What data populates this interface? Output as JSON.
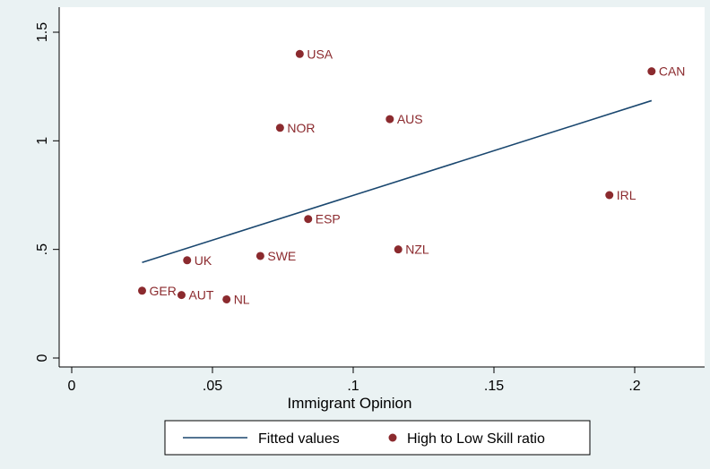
{
  "chart_data": {
    "type": "scatter",
    "title": "",
    "xlabel": "Immigrant Opinion",
    "ylabel": "",
    "xlim": [
      -0.005,
      0.225
    ],
    "ylim": [
      -0.03,
      1.55
    ],
    "xticks": [
      0,
      0.05,
      0.1,
      0.15,
      0.2
    ],
    "xtick_labels": [
      "0",
      ".05",
      ".1",
      ".15",
      ".2"
    ],
    "yticks": [
      0,
      0.5,
      1,
      1.5
    ],
    "ytick_labels": [
      "0",
      ".5",
      "1",
      "1.5"
    ],
    "grid": false,
    "legend_position": "bottom",
    "series": [
      {
        "name": "High to Low Skill ratio",
        "kind": "scatter",
        "color": "#8b2a2e",
        "points": [
          {
            "label": "USA",
            "x": 0.081,
            "y": 1.4
          },
          {
            "label": "CAN",
            "x": 0.206,
            "y": 1.32
          },
          {
            "label": "AUS",
            "x": 0.113,
            "y": 1.1
          },
          {
            "label": "NOR",
            "x": 0.074,
            "y": 1.06
          },
          {
            "label": "IRL",
            "x": 0.191,
            "y": 0.75
          },
          {
            "label": "ESP",
            "x": 0.084,
            "y": 0.64
          },
          {
            "label": "NZL",
            "x": 0.116,
            "y": 0.5
          },
          {
            "label": "SWE",
            "x": 0.067,
            "y": 0.47
          },
          {
            "label": "UK",
            "x": 0.041,
            "y": 0.45
          },
          {
            "label": "GER",
            "x": 0.025,
            "y": 0.31
          },
          {
            "label": "AUT",
            "x": 0.039,
            "y": 0.29
          },
          {
            "label": "NL",
            "x": 0.055,
            "y": 0.27
          }
        ]
      },
      {
        "name": "Fitted values",
        "kind": "line",
        "color": "#1a476f",
        "x": [
          0.025,
          0.206
        ],
        "y": [
          0.44,
          1.185
        ]
      }
    ]
  },
  "legend": {
    "line_label": "Fitted values",
    "marker_label": "High to Low Skill ratio"
  }
}
